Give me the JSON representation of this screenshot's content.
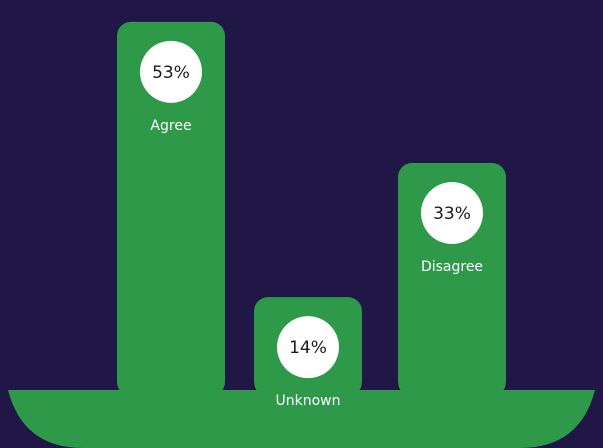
{
  "colors": {
    "background": "#201747",
    "bar": "#2e9a49",
    "bubble": "#ffffff",
    "bubble_text": "#1b1b1b",
    "label_text": "#ffffff"
  },
  "chart_data": {
    "type": "bar",
    "categories": [
      "Agree",
      "Unknown",
      "Disagree"
    ],
    "values": [
      53,
      14,
      33
    ],
    "value_labels": [
      "53%",
      "14%",
      "33%"
    ],
    "unit": "%",
    "ylim": [
      0,
      60
    ],
    "grid": false,
    "legend": "none",
    "title": "",
    "xlabel": "",
    "ylabel": ""
  }
}
